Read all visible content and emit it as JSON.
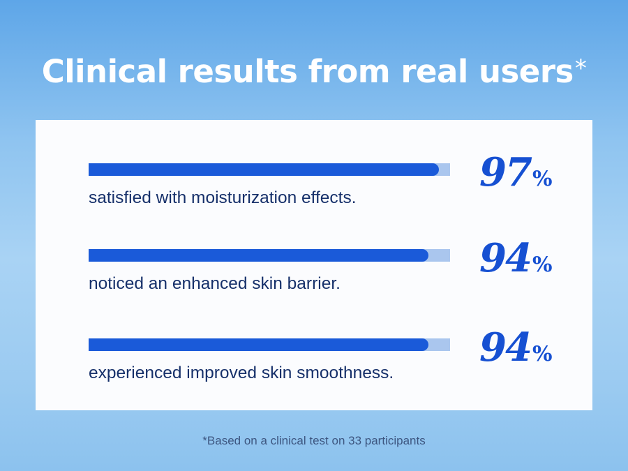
{
  "title": "Clinical results from real users",
  "title_mark": "*",
  "footnote": "*Based on a clinical test on 33 participants",
  "colors": {
    "bar_fill": "#1a5ad9",
    "bar_track": "#aac6ee",
    "text_dark": "#16306a",
    "percent": "#1650d2"
  },
  "chart_data": {
    "type": "bar",
    "orientation": "horizontal",
    "title": "Clinical results from real users*",
    "unit": "%",
    "xlim": [
      0,
      100
    ],
    "items": [
      {
        "label": "satisfied with moisturization effects.",
        "value": 97,
        "value_text": "97",
        "unit": "%"
      },
      {
        "label": "noticed an enhanced skin barrier.",
        "value": 94,
        "value_text": "94",
        "unit": "%"
      },
      {
        "label": "experienced improved skin smoothness.",
        "value": 94,
        "value_text": "94",
        "unit": "%"
      }
    ]
  }
}
